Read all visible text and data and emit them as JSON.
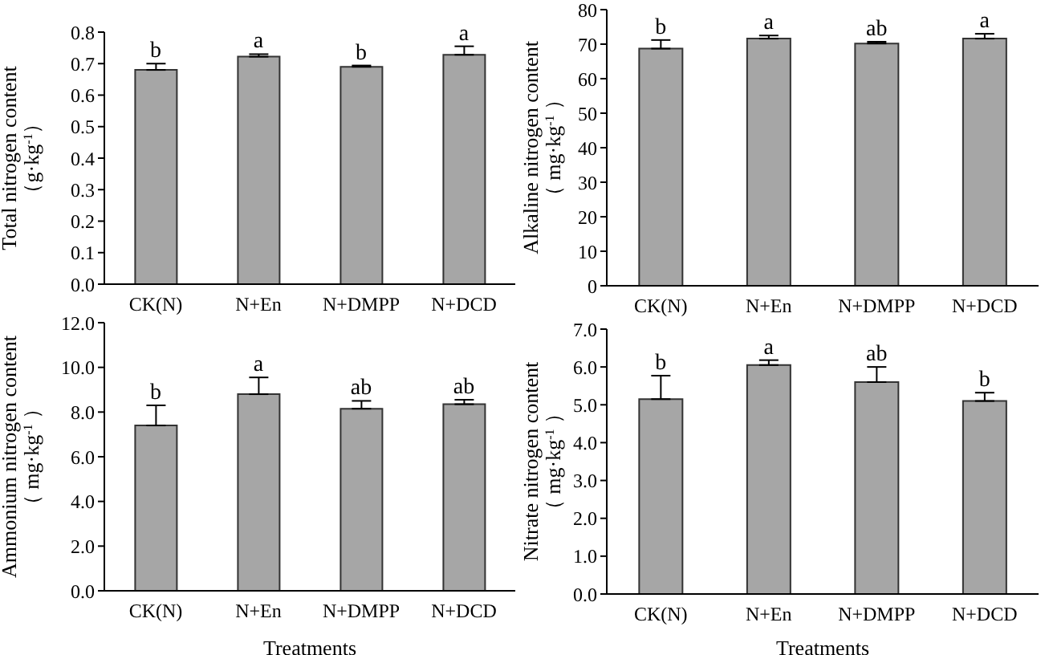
{
  "chart_data": [
    {
      "type": "bar",
      "categories": [
        "CK(N)",
        "N+En",
        "N+DMPP",
        "N+DCD"
      ],
      "values": [
        0.68,
        0.722,
        0.69,
        0.728
      ],
      "errors": [
        [
          0.68,
          0.7
        ],
        [
          0.722,
          0.73
        ],
        [
          0.69,
          0.694
        ],
        [
          0.728,
          0.755
        ]
      ],
      "color": "#a6a6a6",
      "ylabel": "Total nitrogen  content\n（g·kg$^{-1}$）",
      "ylim": [
        0,
        0.8
      ],
      "yticks": [
        {
          "value": 0,
          "label": "0.0"
        },
        0.1,
        0.2,
        0.3,
        0.4,
        0.5,
        0.6,
        0.7,
        0.8
      ],
      "annotations": [
        "b",
        "a",
        "b",
        "a"
      ]
    },
    {
      "type": "bar",
      "categories": [
        "CK(N)",
        "N+En",
        "N+DMPP",
        "N+DCD"
      ],
      "values": [
        68.7,
        71.6,
        70.2,
        71.6
      ],
      "errors": [
        [
          68.7,
          71.2
        ],
        [
          71.6,
          72.5
        ],
        [
          70.2,
          70.7
        ],
        [
          71.6,
          73
        ]
      ],
      "color": "#a6a6a6",
      "ylabel": "Alkaline  nitrogen content\n（ mg·kg$^{-1}$ ）",
      "ylim": [
        0,
        80
      ],
      "yticks": [
        0,
        10,
        20,
        30,
        40,
        50,
        60,
        70,
        80
      ],
      "annotations": [
        "b",
        "a",
        "ab",
        "a"
      ]
    },
    {
      "type": "bar",
      "categories": [
        "CK(N)",
        "N+En",
        "N+DMPP",
        "N+DCD"
      ],
      "values": [
        7.4,
        8.8,
        8.15,
        8.35
      ],
      "errors": [
        [
          7.4,
          8.3
        ],
        [
          8.8,
          9.55
        ],
        [
          8.15,
          8.5
        ],
        [
          8.35,
          8.55
        ]
      ],
      "color": "#a6a6a6",
      "xlabel": "Treatments",
      "ylabel": "Ammonium  nitrogen content\n（ mg·kg$^{-1}$ ）",
      "ylim": [
        0,
        12
      ],
      "yticks": [
        {
          "value": 0,
          "label": "0.0"
        },
        {
          "value": 2,
          "label": "2.0"
        },
        {
          "value": 4,
          "label": "4.0"
        },
        {
          "value": 6,
          "label": "6.0"
        },
        {
          "value": 8,
          "label": "8.0"
        },
        {
          "value": 10,
          "label": "10.0"
        },
        {
          "value": 12,
          "label": "12.0"
        }
      ],
      "annotations": [
        "b",
        "a",
        "ab",
        "ab"
      ]
    },
    {
      "type": "bar",
      "categories": [
        "CK(N)",
        "N+En",
        "N+DMPP",
        "N+DCD"
      ],
      "values": [
        5.15,
        6.05,
        5.6,
        5.1
      ],
      "errors": [
        [
          5.15,
          5.77
        ],
        [
          6.05,
          6.18
        ],
        [
          5.6,
          6.0
        ],
        [
          5.1,
          5.32
        ]
      ],
      "color": "#a6a6a6",
      "xlabel": "Treatments",
      "ylabel": "Nitrate nitrogen content\n（ mg·kg$^{-1}$ ）",
      "ylim": [
        0,
        7
      ],
      "yticks": [
        {
          "value": 0,
          "label": "0.0"
        },
        {
          "value": 1,
          "label": "1.0"
        },
        {
          "value": 2,
          "label": "2.0"
        },
        {
          "value": 3,
          "label": "3.0"
        },
        {
          "value": 4,
          "label": "4.0"
        },
        {
          "value": 5,
          "label": "5.0"
        },
        {
          "value": 6,
          "label": "6.0"
        },
        {
          "value": 7,
          "label": "7.0"
        }
      ],
      "annotations": [
        "b",
        "a",
        "ab",
        "b"
      ]
    }
  ]
}
